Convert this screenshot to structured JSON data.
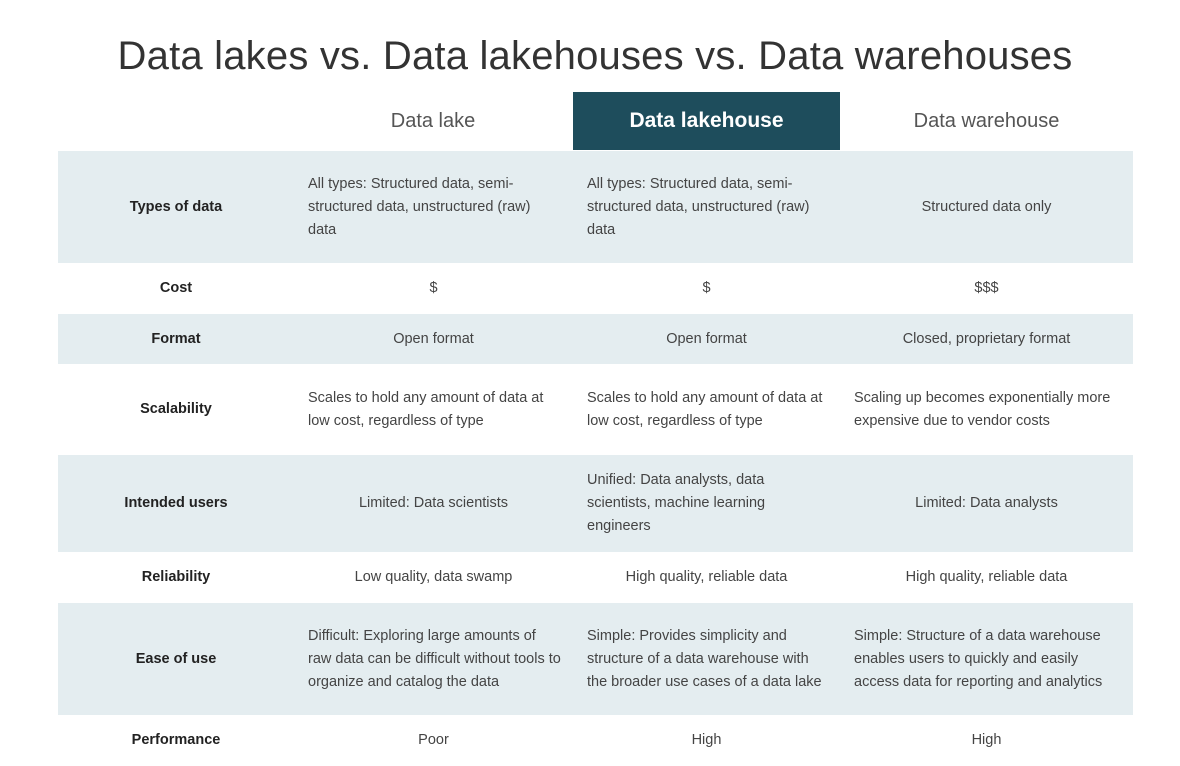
{
  "title": "Data lakes vs. Data lakehouses vs. Data warehouses",
  "columns": [
    "Data lake",
    "Data lakehouse",
    "Data warehouse"
  ],
  "rows": [
    {
      "label": "Types of data",
      "height": 112,
      "shade": true,
      "cells": [
        {
          "text": "All types: Structured data, semi-structured data, unstructured (raw) data",
          "align": "left"
        },
        {
          "text": "All types: Structured data, semi-structured data, unstructured (raw) data",
          "align": "left"
        },
        {
          "text": "Structured data only",
          "align": "center"
        }
      ]
    },
    {
      "label": "Cost",
      "height": 51,
      "shade": false,
      "cells": [
        {
          "text": "$",
          "align": "center"
        },
        {
          "text": "$",
          "align": "center"
        },
        {
          "text": "$$$",
          "align": "center"
        }
      ]
    },
    {
      "label": "Format",
      "height": 50,
      "shade": true,
      "cells": [
        {
          "text": "Open format",
          "align": "center"
        },
        {
          "text": "Open format",
          "align": "center"
        },
        {
          "text": "Closed, proprietary format",
          "align": "center"
        }
      ]
    },
    {
      "label": "Scalability",
      "height": 91,
      "shade": false,
      "cells": [
        {
          "text": "Scales to hold any amount of data at low cost, regardless of type",
          "align": "left"
        },
        {
          "text": "Scales to hold any amount of data at low cost, regardless of type",
          "align": "left"
        },
        {
          "text": "Scaling up becomes exponentially more expensive due to vendor costs",
          "align": "left"
        }
      ]
    },
    {
      "label": "Intended users",
      "height": 97,
      "shade": true,
      "cells": [
        {
          "text": "Limited: Data scientists",
          "align": "center"
        },
        {
          "text": "Unified: Data analysts, data scientists, machine learning engineers",
          "align": "left"
        },
        {
          "text": "Limited: Data analysts",
          "align": "center"
        }
      ]
    },
    {
      "label": "Reliability",
      "height": 51,
      "shade": false,
      "cells": [
        {
          "text": "Low quality, data swamp",
          "align": "center"
        },
        {
          "text": "High quality, reliable data",
          "align": "center"
        },
        {
          "text": "High quality, reliable data",
          "align": "center"
        }
      ]
    },
    {
      "label": "Ease of use",
      "height": 112,
      "shade": true,
      "cells": [
        {
          "text": "Difficult: Exploring large amounts of raw data can be difficult without tools to organize and catalog the data",
          "align": "left"
        },
        {
          "text": "Simple: Provides simplicity and structure of a data warehouse with the broader use cases of a data lake",
          "align": "left"
        },
        {
          "text": "Simple: Structure of a data warehouse enables users to quickly and easily access data for reporting and analytics",
          "align": "left"
        }
      ]
    },
    {
      "label": "Performance",
      "height": 51,
      "shade": false,
      "cells": [
        {
          "text": "Poor",
          "align": "center"
        },
        {
          "text": "High",
          "align": "center"
        },
        {
          "text": "High",
          "align": "center"
        }
      ]
    }
  ]
}
